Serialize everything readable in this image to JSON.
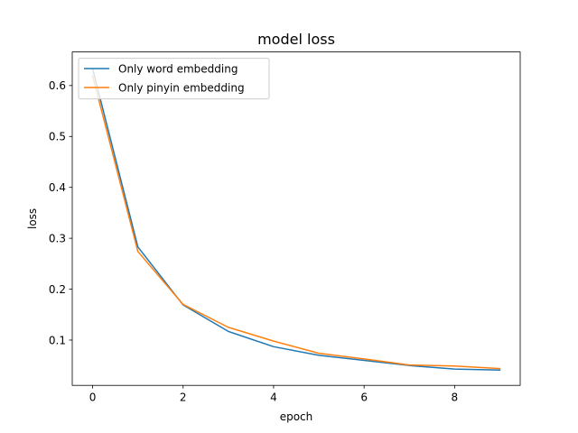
{
  "chart_data": {
    "type": "line",
    "title": "model loss",
    "xlabel": "epoch",
    "ylabel": "loss",
    "x": [
      0,
      1,
      2,
      3,
      4,
      5,
      6,
      7,
      8,
      9
    ],
    "xlim": [
      -0.45,
      9.45
    ],
    "ylim": [
      0.011,
      0.666
    ],
    "xticks": [
      0,
      2,
      4,
      6,
      8
    ],
    "xtick_labels": [
      "0",
      "2",
      "4",
      "6",
      "8"
    ],
    "yticks": [
      0.1,
      0.2,
      0.3,
      0.4,
      0.5,
      0.6
    ],
    "ytick_labels": [
      "0.1",
      "0.2",
      "0.3",
      "0.4",
      "0.5",
      "0.6"
    ],
    "grid": false,
    "legend_position": "top-left",
    "series": [
      {
        "name": "Only word embedding",
        "color": "#1f77b4",
        "values": [
          0.633,
          0.283,
          0.169,
          0.117,
          0.087,
          0.07,
          0.06,
          0.05,
          0.043,
          0.041
        ]
      },
      {
        "name": "Only pinyin embedding",
        "color": "#ff7f0e",
        "values": [
          0.619,
          0.274,
          0.17,
          0.125,
          0.098,
          0.074,
          0.063,
          0.051,
          0.049,
          0.044
        ]
      }
    ]
  }
}
